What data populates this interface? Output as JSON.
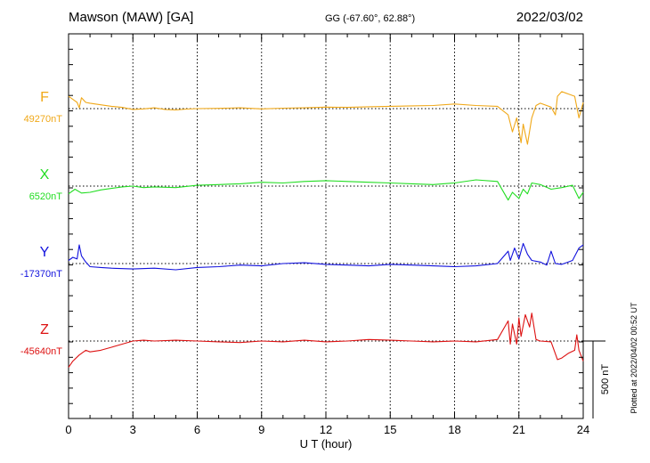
{
  "header": {
    "station": "Mawson (MAW)  [GA]",
    "coords": "GG (-67.60°,  62.88°)",
    "date": "2022/03/02"
  },
  "footer": {
    "plotted": "Plotted at 2022/04/02 00:52 UT"
  },
  "chart_data": {
    "type": "line",
    "title": "Mawson (MAW)  [GA]",
    "xlabel": "U T (hour)",
    "xlim": [
      0,
      24
    ],
    "xticks": [
      0,
      3,
      6,
      9,
      12,
      15,
      18,
      21,
      24
    ],
    "grid": "dotted vertical every 3 h, dotted baseline per component",
    "scale_bar": {
      "label": "500 nT",
      "value_nT": 500
    },
    "series": [
      {
        "name": "F",
        "baseline_label": "49270nT",
        "baseline_nT": 49270,
        "color": "#f0a818",
        "points": [
          [
            0,
            80
          ],
          [
            0.2,
            60
          ],
          [
            0.4,
            40
          ],
          [
            0.5,
            5
          ],
          [
            0.6,
            70
          ],
          [
            0.8,
            40
          ],
          [
            1,
            35
          ],
          [
            1.5,
            25
          ],
          [
            2,
            15
          ],
          [
            2.5,
            8
          ],
          [
            3,
            -5
          ],
          [
            3.5,
            -2
          ],
          [
            4,
            5
          ],
          [
            4.5,
            -5
          ],
          [
            5,
            -8
          ],
          [
            5.5,
            -3
          ],
          [
            6,
            0
          ],
          [
            7,
            2
          ],
          [
            8,
            5
          ],
          [
            9,
            -2
          ],
          [
            10,
            3
          ],
          [
            11,
            5
          ],
          [
            12,
            10
          ],
          [
            13,
            8
          ],
          [
            14,
            12
          ],
          [
            15,
            15
          ],
          [
            16,
            18
          ],
          [
            17,
            20
          ],
          [
            18,
            30
          ],
          [
            19,
            20
          ],
          [
            20,
            15
          ],
          [
            20.5,
            -40
          ],
          [
            20.7,
            -150
          ],
          [
            20.9,
            -60
          ],
          [
            21.1,
            -220
          ],
          [
            21.2,
            -100
          ],
          [
            21.4,
            -230
          ],
          [
            21.6,
            -60
          ],
          [
            21.8,
            20
          ],
          [
            22,
            35
          ],
          [
            22.5,
            10
          ],
          [
            22.7,
            -40
          ],
          [
            22.8,
            80
          ],
          [
            23,
            110
          ],
          [
            23.3,
            95
          ],
          [
            23.6,
            80
          ],
          [
            23.8,
            -60
          ],
          [
            24,
            40
          ]
        ]
      },
      {
        "name": "X",
        "baseline_label": "6520nT",
        "baseline_nT": 6520,
        "color": "#22dd22",
        "points": [
          [
            0,
            -50
          ],
          [
            0.3,
            -20
          ],
          [
            0.6,
            -45
          ],
          [
            1,
            -40
          ],
          [
            1.5,
            -25
          ],
          [
            2,
            -15
          ],
          [
            2.5,
            -5
          ],
          [
            3,
            0
          ],
          [
            3.5,
            -10
          ],
          [
            4,
            -5
          ],
          [
            5,
            -10
          ],
          [
            6,
            5
          ],
          [
            7,
            10
          ],
          [
            8,
            15
          ],
          [
            9,
            25
          ],
          [
            10,
            20
          ],
          [
            11,
            30
          ],
          [
            12,
            35
          ],
          [
            13,
            30
          ],
          [
            14,
            25
          ],
          [
            15,
            20
          ],
          [
            16,
            15
          ],
          [
            17,
            10
          ],
          [
            18,
            20
          ],
          [
            19,
            40
          ],
          [
            20,
            30
          ],
          [
            20.5,
            -90
          ],
          [
            20.7,
            -40
          ],
          [
            21,
            -80
          ],
          [
            21.2,
            -20
          ],
          [
            21.4,
            -50
          ],
          [
            21.6,
            20
          ],
          [
            22,
            10
          ],
          [
            22.5,
            -20
          ],
          [
            23,
            -10
          ],
          [
            23.5,
            5
          ],
          [
            23.8,
            -80
          ],
          [
            24,
            -40
          ]
        ]
      },
      {
        "name": "Y",
        "baseline_label": "-17370nT",
        "baseline_nT": -17370,
        "color": "#1111dd",
        "points": [
          [
            0,
            20
          ],
          [
            0.2,
            40
          ],
          [
            0.4,
            30
          ],
          [
            0.5,
            120
          ],
          [
            0.6,
            50
          ],
          [
            0.8,
            10
          ],
          [
            1,
            -20
          ],
          [
            1.5,
            -25
          ],
          [
            2,
            -30
          ],
          [
            3,
            -35
          ],
          [
            4,
            -30
          ],
          [
            5,
            -40
          ],
          [
            6,
            -25
          ],
          [
            7,
            -20
          ],
          [
            8,
            -10
          ],
          [
            9,
            -15
          ],
          [
            10,
            0
          ],
          [
            11,
            5
          ],
          [
            12,
            -5
          ],
          [
            13,
            -10
          ],
          [
            14,
            -15
          ],
          [
            15,
            -5
          ],
          [
            16,
            -10
          ],
          [
            17,
            -15
          ],
          [
            18,
            -20
          ],
          [
            19,
            -15
          ],
          [
            20,
            0
          ],
          [
            20.5,
            80
          ],
          [
            20.6,
            20
          ],
          [
            20.8,
            100
          ],
          [
            21,
            30
          ],
          [
            21.2,
            130
          ],
          [
            21.4,
            60
          ],
          [
            21.6,
            20
          ],
          [
            22,
            10
          ],
          [
            22.3,
            -10
          ],
          [
            22.5,
            80
          ],
          [
            22.7,
            0
          ],
          [
            23,
            -5
          ],
          [
            23.5,
            20
          ],
          [
            23.8,
            100
          ],
          [
            24,
            120
          ]
        ]
      },
      {
        "name": "Z",
        "baseline_label": "-45640nT",
        "baseline_nT": -45640,
        "color": "#dd1111",
        "points": [
          [
            0,
            -170
          ],
          [
            0.2,
            -130
          ],
          [
            0.5,
            -90
          ],
          [
            0.8,
            -60
          ],
          [
            1,
            -70
          ],
          [
            1.5,
            -60
          ],
          [
            2,
            -40
          ],
          [
            2.5,
            -20
          ],
          [
            3,
            0
          ],
          [
            3.5,
            5
          ],
          [
            4,
            0
          ],
          [
            5,
            5
          ],
          [
            6,
            0
          ],
          [
            7,
            -5
          ],
          [
            8,
            -10
          ],
          [
            9,
            0
          ],
          [
            10,
            -5
          ],
          [
            11,
            5
          ],
          [
            12,
            -5
          ],
          [
            13,
            0
          ],
          [
            14,
            10
          ],
          [
            15,
            5
          ],
          [
            16,
            0
          ],
          [
            17,
            -5
          ],
          [
            18,
            0
          ],
          [
            19,
            -5
          ],
          [
            20,
            10
          ],
          [
            20.5,
            130
          ],
          [
            20.6,
            -20
          ],
          [
            20.7,
            110
          ],
          [
            20.9,
            -20
          ],
          [
            21,
            150
          ],
          [
            21.1,
            30
          ],
          [
            21.3,
            170
          ],
          [
            21.5,
            90
          ],
          [
            21.6,
            180
          ],
          [
            21.8,
            10
          ],
          [
            22,
            0
          ],
          [
            22.5,
            -5
          ],
          [
            22.8,
            -120
          ],
          [
            23,
            -110
          ],
          [
            23.3,
            -80
          ],
          [
            23.6,
            -60
          ],
          [
            23.7,
            40
          ],
          [
            23.8,
            -60
          ],
          [
            24,
            -130
          ]
        ]
      }
    ]
  }
}
